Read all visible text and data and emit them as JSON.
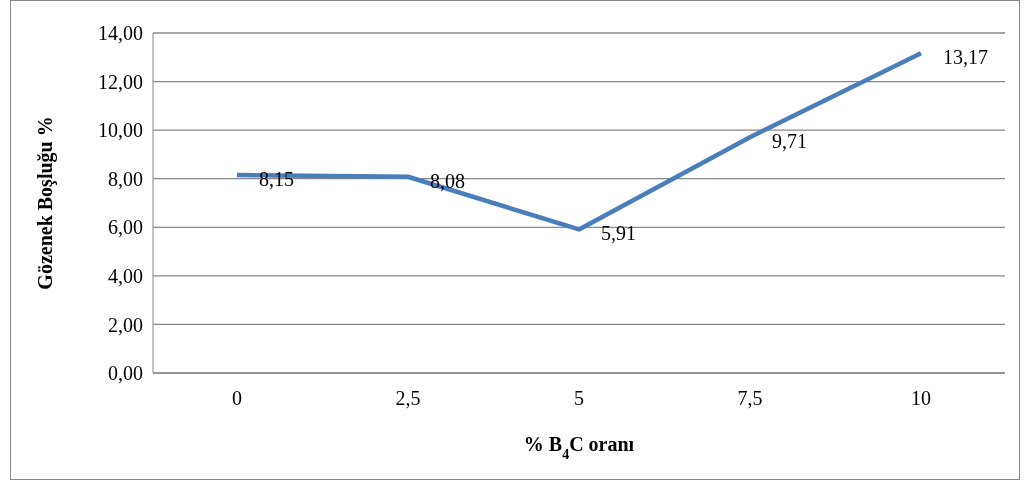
{
  "chart_data": {
    "type": "line",
    "xlabel": "% B$_{4}$C oranı",
    "ylabel": "Gözenek Boşluğu %",
    "categories": [
      "0",
      "2,5",
      "5",
      "7,5",
      "10"
    ],
    "series": [
      {
        "color": "#4a7ebb",
        "values": [
          8.15,
          8.08,
          5.91,
          9.71,
          13.17
        ],
        "value_labels": [
          "8,15",
          "8,08",
          "5,91",
          "9,71",
          "13,17"
        ]
      }
    ],
    "ylim": [
      0,
      14
    ],
    "yticks": [
      {
        "value": 0,
        "label": "0,00"
      },
      {
        "value": 2,
        "label": "2,00"
      },
      {
        "value": 4,
        "label": "4,00"
      },
      {
        "value": 6,
        "label": "6,00"
      },
      {
        "value": 8,
        "label": "8,00"
      },
      {
        "value": 10,
        "label": "10,00"
      },
      {
        "value": 12,
        "label": "12,00"
      },
      {
        "value": 14,
        "label": "14,00"
      }
    ],
    "grid": "y",
    "marker": "none",
    "line_style": "solid"
  }
}
